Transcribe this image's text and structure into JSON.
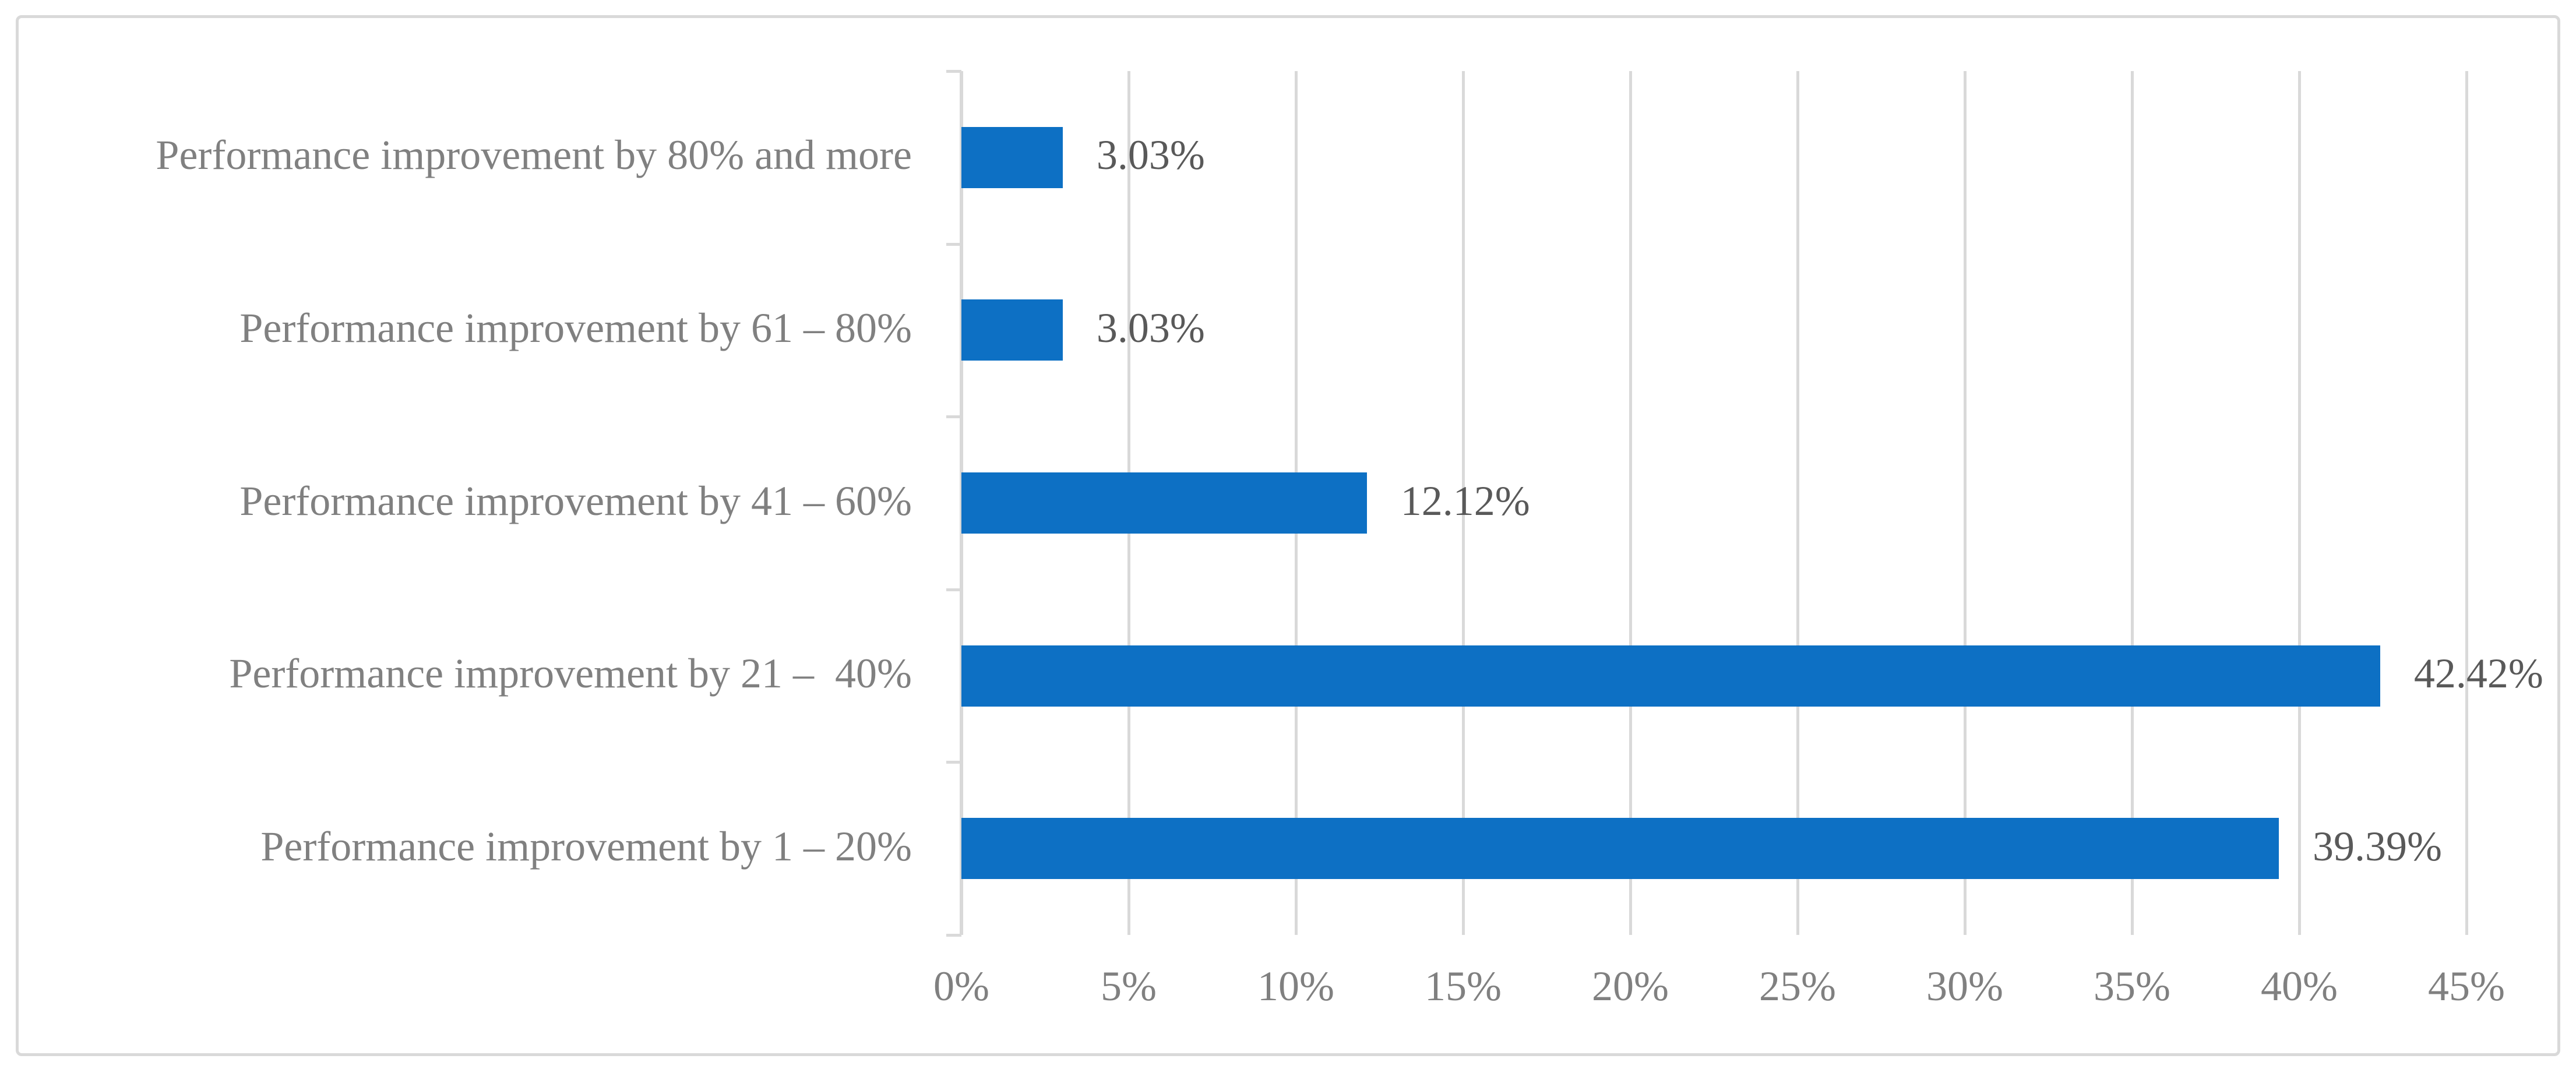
{
  "figure": {
    "background_color": "#ffffff",
    "frame_border_color": "#d9d9d9"
  },
  "chart_data": {
    "type": "bar",
    "orientation": "horizontal",
    "title": "",
    "xlabel": "",
    "ylabel": "",
    "categories_top_to_bottom": [
      "Performance improvement by 80% and more",
      "Performance improvement by 61 – 80%",
      "Performance improvement by 41 – 60%",
      "Performance improvement by 21 –  40%",
      "Performance improvement by 1 – 20%"
    ],
    "values_top_to_bottom": [
      3.03,
      3.03,
      12.12,
      42.42,
      39.39
    ],
    "value_labels_top_to_bottom": [
      "3.03%",
      "3.03%",
      "12.12%",
      "42.42%",
      "39.39%"
    ],
    "xlim": [
      0,
      45
    ],
    "x_ticks": [
      {
        "value": 0,
        "label": "0%"
      },
      {
        "value": 5,
        "label": "5%"
      },
      {
        "value": 10,
        "label": "10%"
      },
      {
        "value": 15,
        "label": "15%"
      },
      {
        "value": 20,
        "label": "20%"
      },
      {
        "value": 25,
        "label": "25%"
      },
      {
        "value": 30,
        "label": "30%"
      },
      {
        "value": 35,
        "label": "35%"
      },
      {
        "value": 40,
        "label": "40%"
      },
      {
        "value": 45,
        "label": "45%"
      }
    ],
    "grid": "vertical",
    "legend": false,
    "bar_color": "#0d70c4",
    "gridline_color": "#d9d9d9",
    "axis_line_color": "#d9d9d9",
    "tick_mark_color": "#d9d9d9",
    "category_label_color": "#808080",
    "tick_label_color": "#808080",
    "value_label_color": "#595959"
  }
}
